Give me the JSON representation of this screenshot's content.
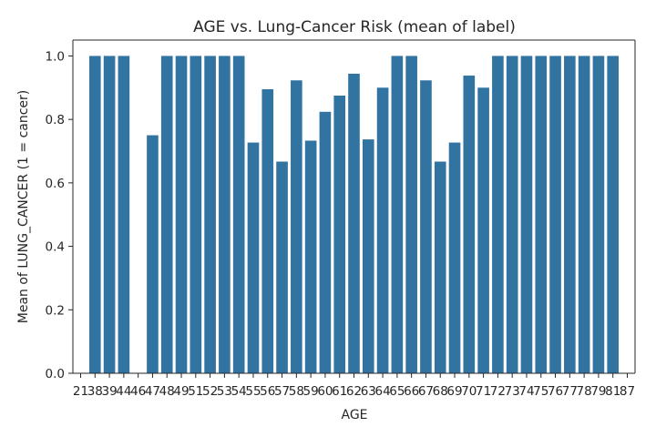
{
  "chart_data": {
    "type": "bar",
    "title": "AGE vs. Lung-Cancer Risk (mean of label)",
    "xlabel": "AGE",
    "ylabel": "Mean of LUNG_CANCER (1 = cancer)",
    "ylim": [
      0,
      1.05
    ],
    "yticks": [
      0.0,
      0.2,
      0.4,
      0.6,
      0.8,
      1.0
    ],
    "ytick_labels": [
      "0.0",
      "0.2",
      "0.4",
      "0.6",
      "0.8",
      "1.0"
    ],
    "grid": false,
    "legend": "none",
    "bar_color": "#3274a1",
    "categories": [
      "21",
      "38",
      "39",
      "44",
      "46",
      "47",
      "48",
      "49",
      "51",
      "52",
      "53",
      "54",
      "55",
      "56",
      "57",
      "58",
      "59",
      "60",
      "61",
      "62",
      "63",
      "64",
      "65",
      "66",
      "67",
      "68",
      "69",
      "70",
      "71",
      "72",
      "73",
      "74",
      "75",
      "76",
      "77",
      "78",
      "79",
      "81",
      "87"
    ],
    "values": [
      0.0,
      1.0,
      1.0,
      1.0,
      0.0,
      0.75,
      1.0,
      1.0,
      1.0,
      1.0,
      1.0,
      1.0,
      0.727,
      0.895,
      0.667,
      0.923,
      0.733,
      0.824,
      0.875,
      0.944,
      0.737,
      0.9,
      1.0,
      1.0,
      0.923,
      0.667,
      0.727,
      0.938,
      0.9,
      1.0,
      1.0,
      1.0,
      1.0,
      1.0,
      1.0,
      1.0,
      1.0,
      1.0,
      0.0
    ]
  }
}
